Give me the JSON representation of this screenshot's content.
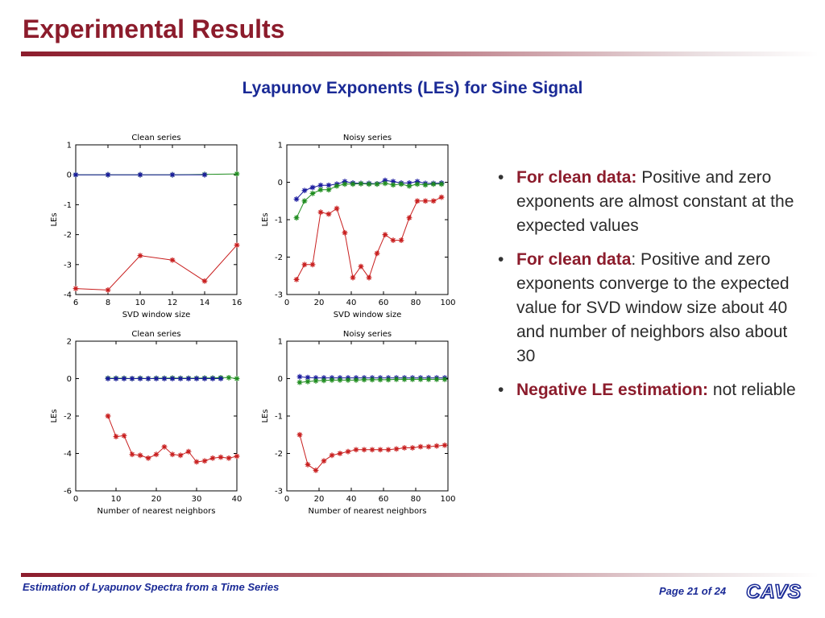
{
  "slide": {
    "title": "Experimental Results",
    "subtitle": "Lyapunov Exponents (LEs) for Sine Signal"
  },
  "bullets": [
    {
      "bold": "For clean data:",
      "text": " Positive and zero exponents are almost constant at  the expected values"
    },
    {
      "bold": "For clean data",
      "text": ": Positive and zero exponents converge to the expected value for SVD window size about 40 and number of neighbors also about 30"
    },
    {
      "bold": "Negative LE estimation:",
      "text": " not reliable"
    }
  ],
  "footer": {
    "left": "Estimation of Lyapunov Spectra from a Time Series",
    "page_prefix": "Page ",
    "page_current": "21",
    "page_mid": " of ",
    "page_total": "24",
    "logo": "CAVS"
  },
  "colors": {
    "title": "#8c1c2c",
    "subtitle": "#1a2a96",
    "series_blue": "#1a1a9e",
    "series_green": "#1e8c1e",
    "series_red": "#c81e1e"
  },
  "chart_data": [
    {
      "type": "line",
      "title": "Clean series",
      "xlabel": "SVD window size",
      "ylabel": "LEs",
      "xlim": [
        6,
        16
      ],
      "ylim": [
        -4,
        1
      ],
      "xticks": [
        6,
        8,
        10,
        12,
        14,
        16
      ],
      "yticks": [
        1,
        0,
        -1,
        -2,
        -3,
        -4
      ],
      "series": [
        {
          "color": "#1e8c1e",
          "x": [
            6,
            8,
            10,
            12,
            14,
            16
          ],
          "y": [
            0,
            0,
            0,
            0,
            0.01,
            0.03
          ]
        },
        {
          "color": "#1a1a9e",
          "x": [
            6,
            8,
            10,
            12,
            14
          ],
          "y": [
            0,
            0,
            0,
            0,
            0
          ]
        },
        {
          "color": "#c81e1e",
          "x": [
            6,
            8,
            10,
            12,
            14,
            16
          ],
          "y": [
            -3.8,
            -3.85,
            -2.7,
            -2.85,
            -3.55,
            -2.35
          ]
        }
      ]
    },
    {
      "type": "line",
      "title": "Noisy series",
      "xlabel": "SVD window size",
      "ylabel": "LEs",
      "xlim": [
        0,
        100
      ],
      "ylim": [
        -3,
        1
      ],
      "xticks": [
        0,
        20,
        40,
        60,
        80,
        100
      ],
      "yticks": [
        1,
        0,
        -1,
        -2,
        -3
      ],
      "series": [
        {
          "color": "#1a1a9e",
          "x": [
            6,
            11,
            16,
            21,
            26,
            31,
            36,
            41,
            46,
            51,
            56,
            61,
            66,
            71,
            76,
            81,
            86,
            91,
            96
          ],
          "y": [
            -0.45,
            -0.22,
            -0.14,
            -0.08,
            -0.08,
            -0.05,
            0.02,
            -0.02,
            -0.03,
            -0.03,
            -0.04,
            0.05,
            0.02,
            -0.02,
            -0.02,
            0.02,
            -0.03,
            -0.03,
            -0.02
          ]
        },
        {
          "color": "#1e8c1e",
          "x": [
            6,
            11,
            16,
            21,
            26,
            31,
            36,
            41,
            46,
            51,
            56,
            61,
            66,
            71,
            76,
            81,
            86,
            91,
            96
          ],
          "y": [
            -0.95,
            -0.5,
            -0.3,
            -0.2,
            -0.2,
            -0.1,
            -0.05,
            -0.05,
            -0.04,
            -0.05,
            -0.05,
            -0.03,
            -0.07,
            -0.05,
            -0.1,
            -0.05,
            -0.07,
            -0.05,
            -0.05
          ]
        },
        {
          "color": "#c81e1e",
          "x": [
            6,
            11,
            16,
            21,
            26,
            31,
            36,
            41,
            46,
            51,
            56,
            61,
            66,
            71,
            76,
            81,
            86,
            91,
            96
          ],
          "y": [
            -2.6,
            -2.2,
            -2.2,
            -0.8,
            -0.85,
            -0.7,
            -1.35,
            -2.55,
            -2.25,
            -2.55,
            -1.9,
            -1.4,
            -1.55,
            -1.55,
            -0.95,
            -0.5,
            -0.5,
            -0.5,
            -0.4
          ]
        }
      ]
    },
    {
      "type": "line",
      "title": "Clean series",
      "xlabel": "Number of nearest neighbors",
      "ylabel": "LEs",
      "xlim": [
        0,
        40
      ],
      "ylim": [
        -6,
        2
      ],
      "xticks": [
        0,
        10,
        20,
        30,
        40
      ],
      "yticks": [
        2,
        0,
        -2,
        -4,
        -6
      ],
      "series": [
        {
          "color": "#1e8c1e",
          "x": [
            8,
            10,
            12,
            14,
            16,
            18,
            20,
            22,
            24,
            26,
            28,
            30,
            32,
            34,
            36,
            38,
            40
          ],
          "y": [
            0.02,
            0.02,
            0.02,
            0,
            0.02,
            0,
            0.02,
            0.02,
            0.03,
            0.02,
            0.02,
            0.02,
            0.03,
            0.03,
            0.05,
            0.05,
            0
          ]
        },
        {
          "color": "#1a1a9e",
          "x": [
            8,
            10,
            12,
            14,
            16,
            18,
            20,
            22,
            24,
            26,
            28,
            30,
            32,
            34,
            36
          ],
          "y": [
            0,
            0,
            0,
            0,
            0,
            0,
            0,
            0,
            0,
            0,
            0,
            0,
            0,
            0,
            0
          ]
        },
        {
          "color": "#c81e1e",
          "x": [
            8,
            10,
            12,
            14,
            16,
            18,
            20,
            22,
            24,
            26,
            28,
            30,
            32,
            34,
            36,
            38,
            40
          ],
          "y": [
            -2,
            -3.1,
            -3.05,
            -4.05,
            -4.1,
            -4.25,
            -4.05,
            -3.65,
            -4.05,
            -4.1,
            -3.9,
            -4.45,
            -4.4,
            -4.25,
            -4.2,
            -4.25,
            -4.15
          ]
        }
      ]
    },
    {
      "type": "line",
      "title": "Noisy series",
      "xlabel": "Number of nearest neighbors",
      "ylabel": "LEs",
      "xlim": [
        0,
        100
      ],
      "ylim": [
        -3,
        1
      ],
      "xticks": [
        0,
        20,
        40,
        60,
        80,
        100
      ],
      "yticks": [
        1,
        0,
        -1,
        -2,
        -3
      ],
      "series": [
        {
          "color": "#1a1a9e",
          "x": [
            8,
            13,
            18,
            23,
            28,
            33,
            38,
            43,
            48,
            53,
            58,
            63,
            68,
            73,
            78,
            83,
            88,
            93,
            98
          ],
          "y": [
            0.05,
            0.03,
            0.02,
            0.02,
            0.02,
            0.02,
            0.02,
            0.02,
            0.02,
            0.02,
            0.02,
            0.02,
            0.02,
            0.02,
            0.02,
            0.02,
            0.02,
            0.02,
            0.02
          ]
        },
        {
          "color": "#1e8c1e",
          "x": [
            8,
            13,
            18,
            23,
            28,
            33,
            38,
            43,
            48,
            53,
            58,
            63,
            68,
            73,
            78,
            83,
            88,
            93,
            98
          ],
          "y": [
            -0.1,
            -0.08,
            -0.06,
            -0.05,
            -0.04,
            -0.04,
            -0.04,
            -0.04,
            -0.03,
            -0.03,
            -0.03,
            -0.03,
            -0.02,
            -0.02,
            -0.02,
            -0.02,
            -0.02,
            -0.02,
            -0.02
          ]
        },
        {
          "color": "#c81e1e",
          "x": [
            8,
            13,
            18,
            23,
            28,
            33,
            38,
            43,
            48,
            53,
            58,
            63,
            68,
            73,
            78,
            83,
            88,
            93,
            98
          ],
          "y": [
            -1.5,
            -2.3,
            -2.45,
            -2.2,
            -2.05,
            -2.0,
            -1.95,
            -1.9,
            -1.9,
            -1.9,
            -1.9,
            -1.9,
            -1.88,
            -1.85,
            -1.85,
            -1.82,
            -1.82,
            -1.8,
            -1.78
          ]
        }
      ]
    }
  ]
}
